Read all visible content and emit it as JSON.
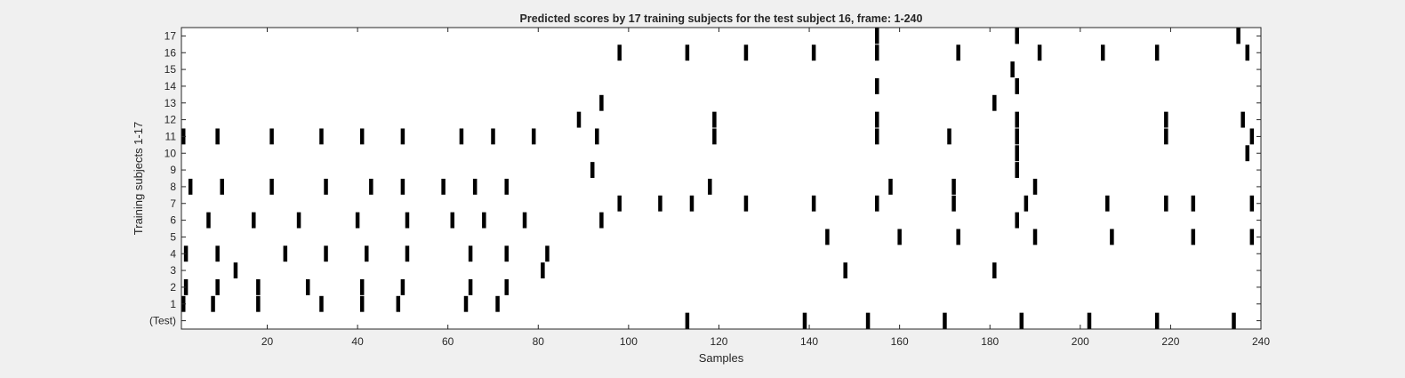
{
  "chart_data": {
    "type": "raster",
    "title": "Predicted scores by 17 training subjects for the test subject 16, frame: 1-240",
    "xlabel": "Samples",
    "ylabel": "Training subjects 1-17",
    "xlim": [
      1,
      240
    ],
    "xticks": [
      20,
      40,
      60,
      80,
      100,
      120,
      140,
      160,
      180,
      200,
      220,
      240
    ],
    "grid": false,
    "rows": [
      {
        "label": "(Test)",
        "events": [
          113,
          139,
          153,
          170,
          187,
          202,
          217,
          234
        ]
      },
      {
        "label": "1",
        "events": [
          1,
          8,
          18,
          32,
          41,
          49,
          64,
          71
        ]
      },
      {
        "label": "2",
        "events": [
          2,
          9,
          18,
          29,
          41,
          50,
          65,
          73
        ]
      },
      {
        "label": "3",
        "events": [
          13,
          81,
          148,
          181
        ]
      },
      {
        "label": "4",
        "events": [
          2,
          9,
          24,
          33,
          42,
          51,
          65,
          73,
          82
        ]
      },
      {
        "label": "5",
        "events": [
          144,
          160,
          173,
          190,
          207,
          225,
          238
        ]
      },
      {
        "label": "6",
        "events": [
          7,
          17,
          27,
          40,
          51,
          61,
          68,
          77,
          94,
          186
        ]
      },
      {
        "label": "7",
        "events": [
          98,
          107,
          114,
          126,
          141,
          155,
          172,
          188,
          206,
          219,
          225,
          238
        ]
      },
      {
        "label": "8",
        "events": [
          3,
          10,
          21,
          33,
          43,
          50,
          59,
          66,
          73,
          118,
          158,
          172,
          190
        ]
      },
      {
        "label": "9",
        "events": [
          92,
          186
        ]
      },
      {
        "label": "10",
        "events": [
          186,
          237
        ]
      },
      {
        "label": "11",
        "events": [
          1,
          9,
          21,
          32,
          41,
          50,
          63,
          70,
          79,
          93,
          119,
          155,
          171,
          186,
          219,
          238
        ]
      },
      {
        "label": "12",
        "events": [
          89,
          119,
          155,
          186,
          219,
          236
        ]
      },
      {
        "label": "13",
        "events": [
          94,
          181
        ]
      },
      {
        "label": "14",
        "events": [
          155,
          186
        ]
      },
      {
        "label": "15",
        "events": [
          185
        ]
      },
      {
        "label": "16",
        "events": [
          98,
          113,
          126,
          141,
          155,
          173,
          191,
          205,
          217,
          237
        ]
      },
      {
        "label": "17",
        "events": [
          155,
          186,
          235
        ]
      }
    ],
    "colors": {
      "mark": "#000000",
      "plot_background": "#ffffff",
      "figure_background": "#f0f0f0",
      "axis": "#262626"
    }
  }
}
